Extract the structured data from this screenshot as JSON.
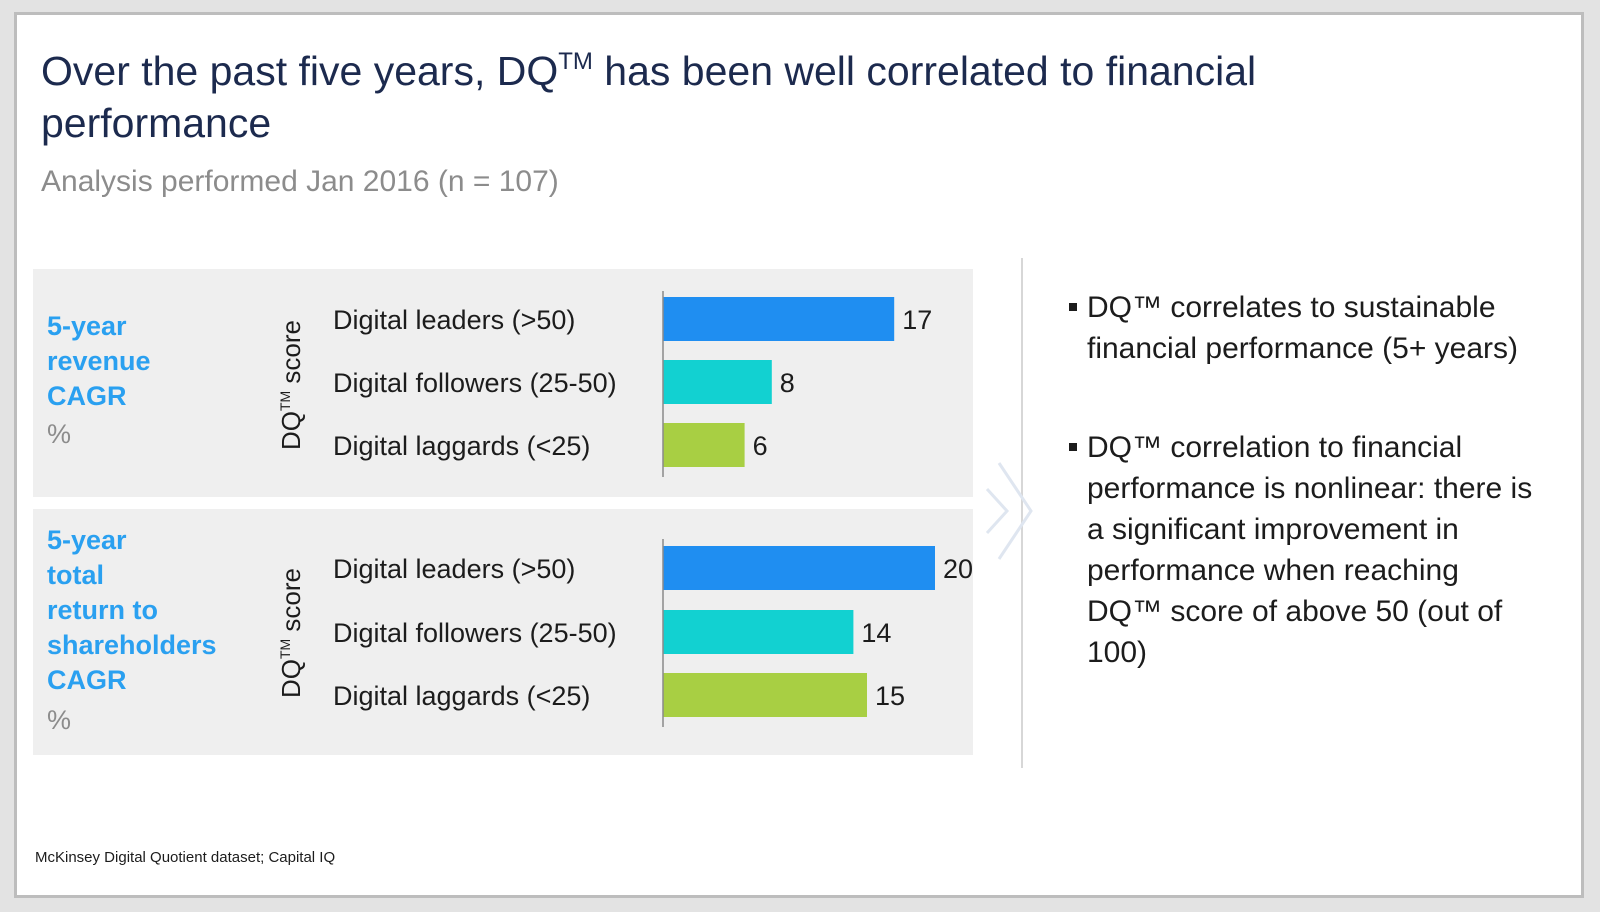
{
  "title": {
    "prefix": "Over the past five years, DQ",
    "sup": "TM",
    "suffix": " has been well correlated to financial performance"
  },
  "subtitle": "Analysis performed Jan 2016 (n = 107)",
  "axis_label": {
    "main": "DQ",
    "sup": "TM",
    "rest": " score"
  },
  "colors": {
    "leaders": "#1f8ef1",
    "followers": "#12d1d1",
    "laggards": "#a8cf43"
  },
  "chart_data": [
    {
      "type": "bar",
      "orientation": "horizontal",
      "title": "5-year revenue CAGR",
      "unit": "%",
      "ylabel": "DQ™ score",
      "categories": [
        "Digital leaders (>50)",
        "Digital followers (25-50)",
        "Digital laggards (<25)"
      ],
      "values": [
        17,
        8,
        6
      ],
      "xlim": [
        0,
        25
      ]
    },
    {
      "type": "bar",
      "orientation": "horizontal",
      "title": "5-year total return to shareholders CAGR",
      "unit": "%",
      "ylabel": "DQ™ score",
      "categories": [
        "Digital leaders (>50)",
        "Digital followers (25-50)",
        "Digital laggards (<25)"
      ],
      "values": [
        20,
        14,
        15
      ],
      "xlim": [
        0,
        25
      ]
    }
  ],
  "panels": [
    {
      "metric_lines": [
        "5-year",
        "revenue",
        "CAGR"
      ],
      "unit": "%"
    },
    {
      "metric_lines": [
        "5-year",
        "total",
        "return to",
        "shareholders",
        "CAGR"
      ],
      "unit": "%"
    }
  ],
  "bullets": [
    "DQ™ correlates to sustainable financial performance (5+ years)",
    "DQ™ correlation to financial performance is nonlinear: there is a significant improvement in performance when reaching DQ™ score of above 50 (out of 100)"
  ],
  "source": "McKinsey Digital Quotient dataset; Capital IQ"
}
